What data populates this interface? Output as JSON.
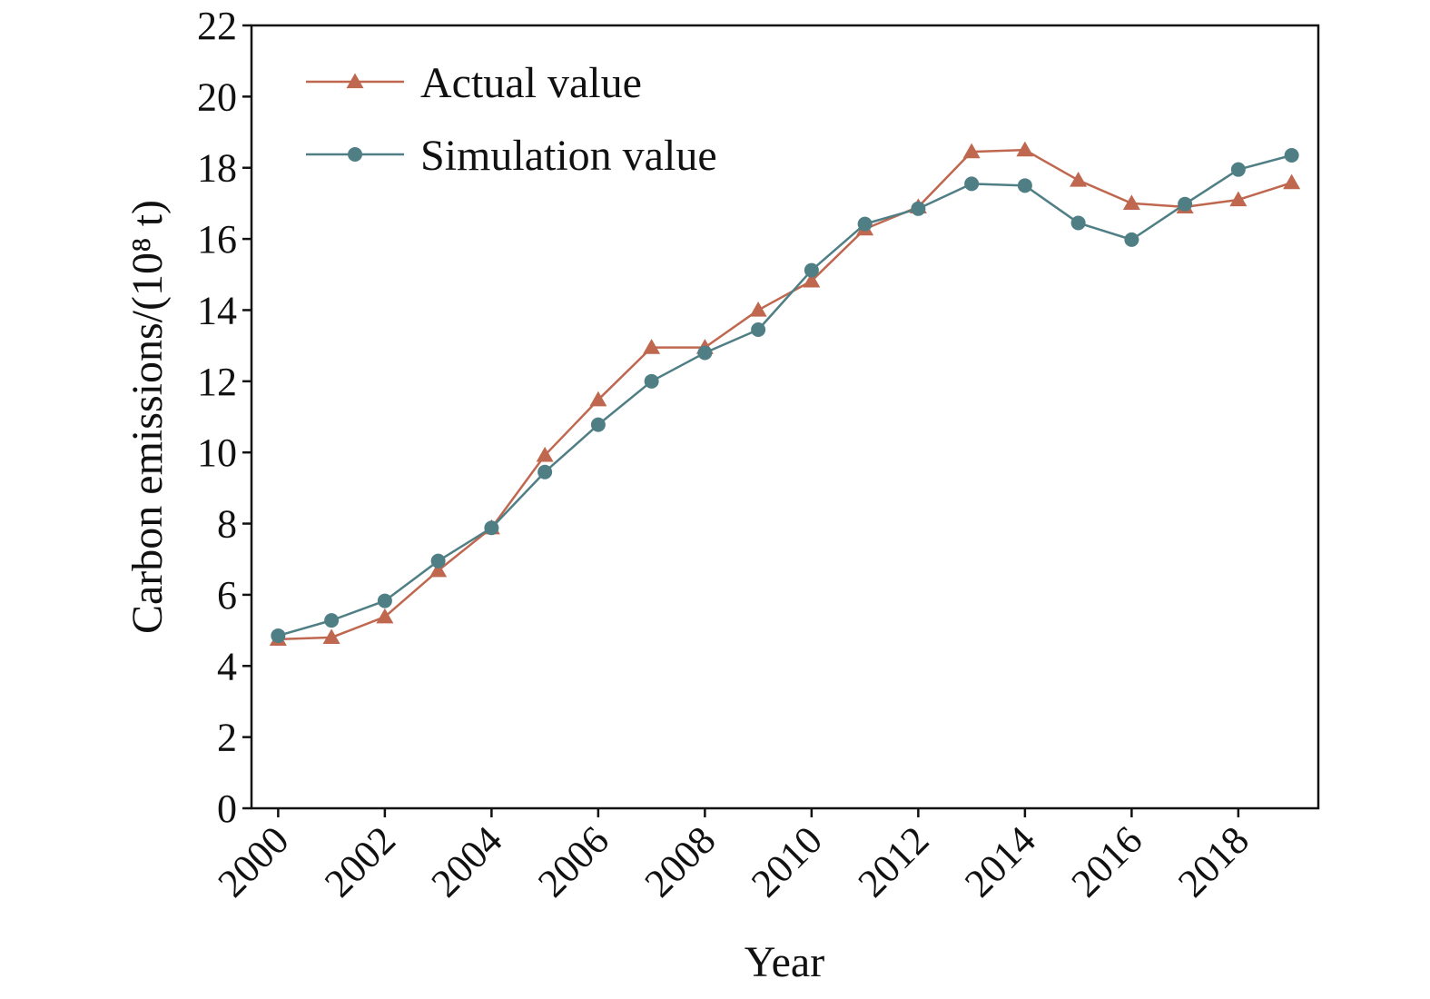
{
  "chart_data": {
    "type": "line",
    "x": [
      2000,
      2001,
      2002,
      2003,
      2004,
      2005,
      2006,
      2007,
      2008,
      2009,
      2010,
      2011,
      2012,
      2013,
      2014,
      2015,
      2016,
      2017,
      2018,
      2019
    ],
    "x_tick_labels": [
      "2000",
      "2002",
      "2004",
      "2006",
      "2008",
      "2010",
      "2012",
      "2014",
      "2016",
      "2018"
    ],
    "y_tick_labels": [
      "0",
      "2",
      "4",
      "6",
      "8",
      "10",
      "12",
      "14",
      "16",
      "18",
      "20",
      "22"
    ],
    "series": [
      {
        "name": "Actual value",
        "color": "#c0674f",
        "marker": "triangle",
        "values": [
          4.75,
          4.8,
          5.38,
          6.68,
          7.88,
          9.92,
          11.48,
          12.95,
          12.95,
          14.0,
          14.82,
          16.28,
          16.9,
          18.45,
          18.5,
          17.65,
          17.0,
          16.9,
          17.1,
          17.58
        ]
      },
      {
        "name": "Simulation value",
        "color": "#4f7f85",
        "marker": "circle",
        "values": [
          4.85,
          5.28,
          5.83,
          6.95,
          7.88,
          9.45,
          10.78,
          12.0,
          12.8,
          13.45,
          15.12,
          16.42,
          16.85,
          17.55,
          17.5,
          16.45,
          15.98,
          16.98,
          17.95,
          18.35
        ]
      }
    ],
    "xlabel": "Year",
    "ylabel": "Carbon emissions/(10⁸ t)",
    "xlim": [
      1999.5,
      2019.5
    ],
    "ylim": [
      0,
      22
    ],
    "grid": false,
    "legend_position": "top-left"
  }
}
